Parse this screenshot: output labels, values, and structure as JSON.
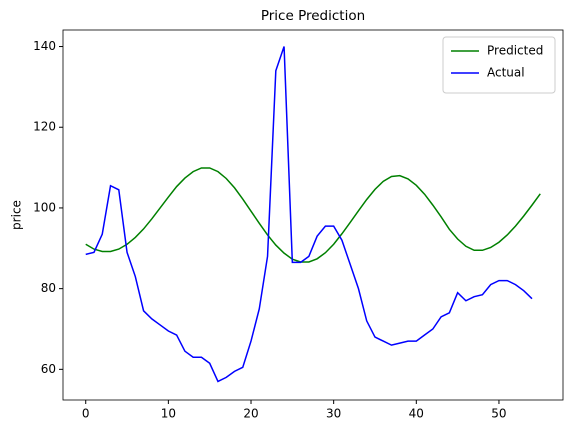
{
  "chart_data": {
    "type": "line",
    "title": "Price Prediction",
    "y_label": "price",
    "x": [
      0,
      1,
      2,
      3,
      4,
      5,
      6,
      7,
      8,
      9,
      10,
      11,
      12,
      13,
      14,
      15,
      16,
      17,
      18,
      19,
      20,
      21,
      22,
      23,
      24,
      25,
      26,
      27,
      28,
      29,
      30,
      31,
      32,
      33,
      34,
      35,
      36,
      37,
      38,
      39,
      40,
      41,
      42,
      43,
      44,
      45,
      46,
      47,
      48,
      49,
      50,
      51,
      52,
      53,
      54,
      55
    ],
    "series": [
      {
        "name": "Predicted",
        "color": "#008000",
        "values": [
          91,
          89.8,
          89.2,
          89.2,
          89.8,
          91,
          92.7,
          94.8,
          97.3,
          100,
          102.7,
          105.3,
          107.4,
          109,
          109.9,
          109.9,
          109,
          107.3,
          105,
          102.2,
          99.2,
          96.2,
          93.3,
          90.8,
          88.8,
          87.3,
          86.6,
          86.6,
          87.4,
          88.9,
          91,
          93.6,
          96.4,
          99.3,
          102.1,
          104.6,
          106.6,
          107.8,
          108,
          107.2,
          105.6,
          103.4,
          100.7,
          97.8,
          94.7,
          92.3,
          90.5,
          89.5,
          89.5,
          90.2,
          91.5,
          93.3,
          95.5,
          98,
          100.7,
          103.5
        ]
      },
      {
        "name": "Actual",
        "color": "#0000ff",
        "values": [
          88.5,
          89,
          93.5,
          105.5,
          104.5,
          89,
          83,
          74.5,
          72.5,
          71,
          69.5,
          68.5,
          64.5,
          63,
          63,
          61.5,
          57,
          58,
          59.5,
          60.5,
          67,
          75,
          88,
          134,
          140,
          86.5,
          86.5,
          88,
          93,
          95.5,
          95.5,
          92,
          86,
          80,
          72,
          68,
          67,
          66,
          66.5,
          67,
          67,
          68.5,
          70,
          73,
          74,
          79,
          77,
          78,
          78.5,
          81,
          82,
          82,
          81,
          79.5,
          77.5,
          null
        ]
      }
    ],
    "xlim": [
      -2.75,
      57.75
    ],
    "ylim": [
      52.4,
      144.1
    ],
    "xticks": [
      0,
      10,
      20,
      30,
      40,
      50
    ],
    "yticks": [
      60,
      80,
      100,
      120,
      140
    ],
    "legend": "upper right"
  }
}
